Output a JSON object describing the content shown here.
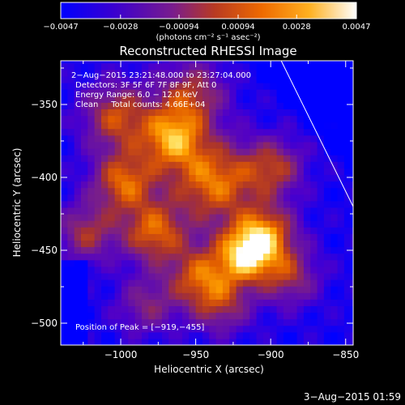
{
  "chart_data": {
    "type": "heatmap",
    "title": "Reconstructed RHESSI Image",
    "xlabel": "Heliocentric X (arcsec)",
    "ylabel": "Heliocentric Y (arcsec)",
    "xlim": [
      -1040,
      -845
    ],
    "ylim": [
      -515,
      -320
    ],
    "x_ticks": [
      -1000,
      -950,
      -900,
      -850
    ],
    "y_ticks": [
      -350,
      -400,
      -450,
      -500
    ],
    "x_tick_labels": [
      "−1000",
      "−950",
      "−900",
      "−850"
    ],
    "y_tick_labels": [
      "−350",
      "−400",
      "−450",
      "−500"
    ],
    "colorbar": {
      "ticks": [
        -0.0047,
        -0.0028,
        -0.00094,
        0.00094,
        0.0028,
        0.0047
      ],
      "tick_labels": [
        "−0.0047",
        "−0.0028",
        "−0.00094",
        "0.00094",
        "0.0028",
        "0.0047"
      ],
      "units_label": "(photons cm⁻² s⁻¹ asec⁻²)",
      "range": [
        -0.0047,
        0.0047
      ]
    },
    "peak": [
      -919,
      -455
    ],
    "annotations": [
      " 2−Aug−2015 23:21:48.000 to 23:27:04.000",
      "Detectors: 3F 5F 6F 7F 8F 9F, Att 0",
      "Energy Range: 6.0 − 12.0 keV",
      "Clean     Total counts: 4.66E+04",
      "Position of Peak = [−919,−455]"
    ],
    "limb_line": {
      "x": [
        -893,
        -845
      ],
      "y": [
        -320,
        -420
      ]
    },
    "footer_date": "3−Aug−2015 01:59"
  },
  "colors": {
    "background": "#000000",
    "text": "#ffffff",
    "colormap": [
      "#0000ff",
      "#5000c8",
      "#7a1f88",
      "#a8322e",
      "#e05a00",
      "#ffa000",
      "#ffe060",
      "#ffffff"
    ]
  }
}
